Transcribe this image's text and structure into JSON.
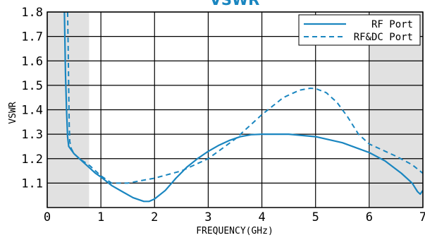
{
  "chart_data": {
    "type": "line",
    "title": "VSWR",
    "xlabel": "FREQUENCY(GHz)",
    "ylabel": "VSWR",
    "xlim": [
      0,
      7
    ],
    "ylim": [
      1.0,
      1.8
    ],
    "x_ticks": [
      0,
      1,
      2,
      3,
      4,
      5,
      6,
      7
    ],
    "x_tick_labels": [
      "0",
      "1",
      "2",
      "3",
      "4",
      "5",
      "6",
      "7"
    ],
    "y_ticks": [
      1.1,
      1.2,
      1.3,
      1.4,
      1.5,
      1.6,
      1.7,
      1.8
    ],
    "y_tick_labels": [
      "1.1",
      "1.2",
      "1.3",
      "1.4",
      "1.5",
      "1.6",
      "1.7",
      "1.8"
    ],
    "grid": true,
    "legend_position": "top-right",
    "shaded_regions": [
      [
        0,
        0.78
      ],
      [
        6.02,
        7
      ]
    ],
    "colors": {
      "line": "#1a86c0",
      "shade": "#e1e1e1",
      "title": "#1a86c0"
    },
    "series": [
      {
        "name": "RF Port",
        "style": "solid",
        "x": [
          0.32,
          0.34,
          0.36,
          0.38,
          0.4,
          0.45,
          0.5,
          0.6,
          0.7,
          0.8,
          0.9,
          1.0,
          1.2,
          1.4,
          1.6,
          1.8,
          1.9,
          2.0,
          2.2,
          2.4,
          2.6,
          2.8,
          3.0,
          3.2,
          3.4,
          3.6,
          3.8,
          4.0,
          4.5,
          5.0,
          5.5,
          6.0,
          6.3,
          6.6,
          6.8,
          6.9,
          6.95,
          7.0
        ],
        "y": [
          1.8,
          1.55,
          1.4,
          1.29,
          1.25,
          1.235,
          1.22,
          1.2,
          1.18,
          1.16,
          1.14,
          1.125,
          1.09,
          1.065,
          1.04,
          1.025,
          1.025,
          1.035,
          1.07,
          1.12,
          1.165,
          1.2,
          1.23,
          1.255,
          1.275,
          1.29,
          1.298,
          1.3,
          1.3,
          1.29,
          1.265,
          1.225,
          1.19,
          1.14,
          1.1,
          1.065,
          1.055,
          1.07
        ]
      },
      {
        "name": "RF&DC Port",
        "style": "dashed",
        "x": [
          0.38,
          0.39,
          0.4,
          0.41,
          0.42,
          0.45,
          0.5,
          0.6,
          0.8,
          1.0,
          1.2,
          1.5,
          2.0,
          2.5,
          3.0,
          3.5,
          4.0,
          4.4,
          4.7,
          4.9,
          5.0,
          5.2,
          5.4,
          5.6,
          5.8,
          6.0,
          6.2,
          6.5,
          6.8,
          7.0
        ],
        "y": [
          1.8,
          1.66,
          1.48,
          1.34,
          1.27,
          1.24,
          1.22,
          1.2,
          1.17,
          1.13,
          1.1,
          1.1,
          1.12,
          1.15,
          1.2,
          1.28,
          1.38,
          1.45,
          1.48,
          1.488,
          1.487,
          1.47,
          1.43,
          1.37,
          1.3,
          1.26,
          1.24,
          1.21,
          1.175,
          1.14
        ]
      }
    ]
  }
}
